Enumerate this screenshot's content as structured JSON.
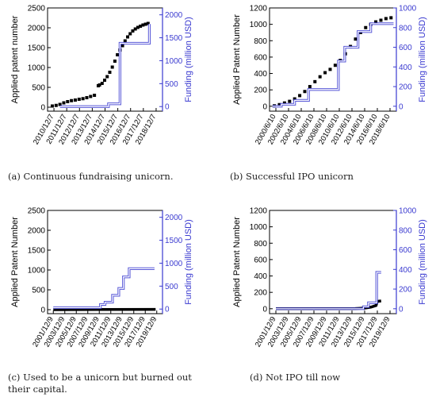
{
  "chart_data": [
    {
      "type": "line",
      "caption": "(a) Continuous fundraising unicorn.",
      "xlabel": "",
      "ylabel": "Applied patent number",
      "y2label": "Funding (million USD)",
      "x_ticks": [
        "2010/12/7",
        "2011/12/7",
        "2012/12/7",
        "2013/12/7",
        "2014/12/7",
        "2015/12/7",
        "2016/12/7",
        "2017/12/7",
        "2018/12/7"
      ],
      "y_ticks": [
        "0",
        "500",
        "1000",
        "1500",
        "2000",
        "2500"
      ],
      "y2_ticks": [
        "0",
        "500",
        "1000",
        "1500",
        "2000"
      ],
      "xlim": [
        2010.93,
        2019.93
      ],
      "ylim": [
        -100,
        2500
      ],
      "y2lim": [
        -100,
        2150
      ],
      "series": [
        {
          "axis": "left",
          "color": "#000000",
          "style": "markers",
          "x": [
            2011.3,
            2011.6,
            2011.9,
            2012.2,
            2012.5,
            2012.8,
            2013.1,
            2013.4,
            2013.7,
            2014.0,
            2014.3,
            2014.6,
            2014.9,
            2015.0,
            2015.2,
            2015.4,
            2015.6,
            2015.8,
            2016.0,
            2016.2,
            2016.4,
            2016.6,
            2016.8,
            2017.0,
            2017.2,
            2017.4,
            2017.6,
            2017.8,
            2018.0,
            2018.2,
            2018.4,
            2018.6,
            2018.8
          ],
          "y": [
            30,
            45,
            70,
            110,
            140,
            165,
            180,
            200,
            215,
            240,
            270,
            300,
            540,
            560,
            600,
            680,
            770,
            880,
            1010,
            1160,
            1320,
            1440,
            1550,
            1670,
            1770,
            1850,
            1920,
            1970,
            2010,
            2040,
            2070,
            2090,
            2110
          ]
        },
        {
          "axis": "right",
          "color": "#3a3ad0",
          "style": "step",
          "x": [
            2011.9,
            2015.7,
            2015.7,
            2016.6,
            2016.6,
            2018.9,
            2018.9
          ],
          "y": [
            0,
            0,
            60,
            60,
            1380,
            1380,
            1800
          ]
        }
      ]
    },
    {
      "type": "line",
      "caption": "(b) Successful IPO unicorn",
      "xlabel": "",
      "ylabel": "Applied Patent Number",
      "y2label": "Funding (million USD)",
      "x_ticks": [
        "2000/6/10",
        "2002/6/10",
        "2004/6/10",
        "2006/6/10",
        "2008/6/10",
        "2010/6/10",
        "2012/6/10",
        "2014/6/10",
        "2016/6/10",
        "2018/6/10"
      ],
      "y_ticks": [
        "0",
        "200",
        "400",
        "600",
        "800",
        "1000",
        "1200"
      ],
      "y2_ticks": [
        "0",
        "200",
        "400",
        "600",
        "800",
        "1000"
      ],
      "xlim": [
        2000.44,
        2020.44
      ],
      "ylim": [
        -60,
        1200
      ],
      "y2lim": [
        -50,
        1000
      ],
      "series": [
        {
          "axis": "left",
          "color": "#000000",
          "style": "markers",
          "x": [
            2001.2,
            2002.0,
            2002.8,
            2003.6,
            2004.4,
            2005.2,
            2006.0,
            2006.8,
            2007.6,
            2008.4,
            2009.2,
            2010.0,
            2010.8,
            2011.6,
            2012.4,
            2013.2,
            2014.0,
            2014.8,
            2015.6,
            2016.4,
            2017.2,
            2018.0,
            2018.8,
            2019.6
          ],
          "y": [
            5,
            20,
            40,
            60,
            90,
            130,
            180,
            240,
            300,
            360,
            410,
            450,
            500,
            560,
            640,
            730,
            820,
            900,
            960,
            1000,
            1030,
            1050,
            1070,
            1080
          ]
        },
        {
          "axis": "right",
          "color": "#3a3ad0",
          "style": "step",
          "x": [
            2000.9,
            2002.3,
            2002.3,
            2004.4,
            2004.4,
            2006.6,
            2006.6,
            2011.3,
            2011.3,
            2012.3,
            2012.3,
            2014.4,
            2014.4,
            2016.4,
            2016.4,
            2020.0
          ],
          "y": [
            0,
            0,
            20,
            20,
            60,
            60,
            170,
            170,
            460,
            460,
            600,
            600,
            760,
            760,
            840,
            840
          ]
        }
      ]
    },
    {
      "type": "line",
      "caption": "(c) Used to be a unicorn but burned out their capital.",
      "xlabel": "",
      "ylabel": "Applied Patent Number",
      "y2label": "Funding (million USD)",
      "x_ticks": [
        "2001/12/9",
        "2003/12/9",
        "2005/12/9",
        "2007/12/9",
        "2009/12/9",
        "2011/12/9",
        "2013/12/9",
        "2015/12/9",
        "2017/12/9",
        "2019/12/9"
      ],
      "y_ticks": [
        "0",
        "500",
        "1000",
        "1500",
        "2000",
        "2500"
      ],
      "y2_ticks": [
        "0",
        "500",
        "1000",
        "1500",
        "2000"
      ],
      "xlim": [
        2001.0,
        2021.0
      ],
      "ylim": [
        -100,
        2500
      ],
      "y2lim": [
        -100,
        2150
      ],
      "series": [
        {
          "axis": "left",
          "color": "#000000",
          "style": "line",
          "x": [
            2002.0,
            2010.0,
            2019.8
          ],
          "y": [
            0,
            5,
            8
          ]
        },
        {
          "axis": "right",
          "color": "#3a3ad0",
          "style": "step",
          "x": [
            2002.0,
            2010.2,
            2010.2,
            2011.0,
            2011.0,
            2012.3,
            2012.3,
            2013.4,
            2013.4,
            2014.2,
            2014.2,
            2015.2,
            2015.2,
            2019.6
          ],
          "y": [
            30,
            30,
            100,
            100,
            150,
            150,
            300,
            300,
            450,
            450,
            700,
            700,
            880,
            880
          ]
        }
      ]
    },
    {
      "type": "line",
      "caption": "(d) Not IPO till now",
      "xlabel": "",
      "ylabel": "Applied Patent Number",
      "y2label": "Funding (million USD)",
      "x_ticks": [
        "2001/12/9",
        "2003/12/9",
        "2005/12/9",
        "2007/12/9",
        "2009/12/9",
        "2011/12/9",
        "2013/12/9",
        "2015/12/9",
        "2017/12/9",
        "2019/12/9"
      ],
      "y_ticks": [
        "0",
        "200",
        "400",
        "600",
        "800",
        "1000",
        "1200"
      ],
      "y2_ticks": [
        "0",
        "200",
        "400",
        "600",
        "800",
        "1000"
      ],
      "xlim": [
        2001.0,
        2021.0
      ],
      "ylim": [
        -60,
        1200
      ],
      "y2lim": [
        -50,
        1000
      ],
      "series": [
        {
          "axis": "left",
          "color": "#000000",
          "style": "line",
          "x": [
            2002.0,
            2014.5,
            2016.0,
            2017.0,
            2017.8,
            2018.0,
            2018.6
          ],
          "y": [
            0,
            2,
            8,
            20,
            40,
            90,
            95
          ]
        },
        {
          "axis": "right",
          "color": "#3a3ad0",
          "style": "step",
          "x": [
            2002.0,
            2015.8,
            2015.8,
            2016.6,
            2016.6,
            2017.9,
            2017.9,
            2018.6
          ],
          "y": [
            0,
            0,
            20,
            20,
            60,
            60,
            370,
            370
          ]
        }
      ]
    }
  ]
}
